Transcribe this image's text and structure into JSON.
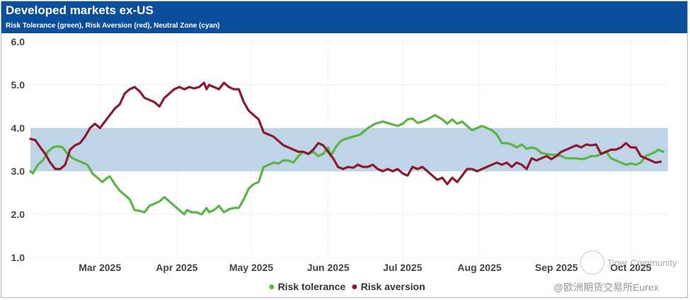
{
  "chart_data": {
    "type": "line",
    "title": "Developed markets ex-US",
    "subtitle": "Risk Tolerance (green), Risk Aversion (red), Neutral Zone (cyan)",
    "xlabel": "",
    "ylabel": "",
    "ylim": [
      1.0,
      6.0
    ],
    "yticks": [
      "1.0",
      "2.0",
      "3.0",
      "4.0",
      "5.0",
      "6.0"
    ],
    "neutral_zone": [
      3.0,
      4.0
    ],
    "x_tick_labels": [
      "Mar 2025",
      "Apr 2025",
      "May 2025",
      "Jun 2025",
      "Jul 2025",
      "Aug 2025",
      "Sep 2025",
      "Oct 2025"
    ],
    "x_tick_days": [
      28,
      59,
      89,
      120,
      150,
      181,
      212,
      242
    ],
    "x_range_days": [
      0,
      257
    ],
    "grid": true,
    "legend_position": "bottom",
    "series": [
      {
        "name": "Risk tolerance",
        "color": "#5cb346",
        "points": [
          [
            0,
            3.0
          ],
          [
            1,
            2.95
          ],
          [
            2,
            3.05
          ],
          [
            3,
            3.15
          ],
          [
            5,
            3.25
          ],
          [
            7,
            3.45
          ],
          [
            9,
            3.55
          ],
          [
            11,
            3.58
          ],
          [
            13,
            3.55
          ],
          [
            15,
            3.4
          ],
          [
            17,
            3.3
          ],
          [
            19,
            3.25
          ],
          [
            21,
            3.2
          ],
          [
            23,
            3.15
          ],
          [
            25,
            2.95
          ],
          [
            27,
            2.85
          ],
          [
            29,
            2.75
          ],
          [
            31,
            2.85
          ],
          [
            32,
            2.88
          ],
          [
            34,
            2.7
          ],
          [
            36,
            2.55
          ],
          [
            38,
            2.45
          ],
          [
            40,
            2.35
          ],
          [
            42,
            2.1
          ],
          [
            44,
            2.08
          ],
          [
            46,
            2.05
          ],
          [
            48,
            2.2
          ],
          [
            50,
            2.25
          ],
          [
            52,
            2.3
          ],
          [
            54,
            2.4
          ],
          [
            56,
            2.3
          ],
          [
            58,
            2.2
          ],
          [
            60,
            2.1
          ],
          [
            62,
            2.0
          ],
          [
            63,
            2.1
          ],
          [
            65,
            2.05
          ],
          [
            67,
            2.05
          ],
          [
            69,
            2.0
          ],
          [
            71,
            2.15
          ],
          [
            72,
            2.05
          ],
          [
            74,
            2.1
          ],
          [
            76,
            2.2
          ],
          [
            78,
            2.05
          ],
          [
            80,
            2.12
          ],
          [
            82,
            2.15
          ],
          [
            84,
            2.15
          ],
          [
            86,
            2.35
          ],
          [
            88,
            2.6
          ],
          [
            90,
            2.7
          ],
          [
            92,
            2.75
          ],
          [
            94,
            3.1
          ],
          [
            96,
            3.15
          ],
          [
            98,
            3.2
          ],
          [
            100,
            3.18
          ],
          [
            102,
            3.25
          ],
          [
            104,
            3.25
          ],
          [
            106,
            3.2
          ],
          [
            108,
            3.35
          ],
          [
            110,
            3.45
          ],
          [
            112,
            3.4
          ],
          [
            114,
            3.45
          ],
          [
            116,
            3.35
          ],
          [
            118,
            3.4
          ],
          [
            120,
            3.55
          ],
          [
            121,
            3.35
          ],
          [
            123,
            3.55
          ],
          [
            125,
            3.7
          ],
          [
            127,
            3.75
          ],
          [
            130,
            3.8
          ],
          [
            133,
            3.85
          ],
          [
            136,
            4.0
          ],
          [
            139,
            4.1
          ],
          [
            142,
            4.15
          ],
          [
            145,
            4.1
          ],
          [
            148,
            4.05
          ],
          [
            150,
            4.1
          ],
          [
            152,
            4.2
          ],
          [
            154,
            4.22
          ],
          [
            156,
            4.12
          ],
          [
            158,
            4.15
          ],
          [
            160,
            4.2
          ],
          [
            163,
            4.3
          ],
          [
            166,
            4.2
          ],
          [
            168,
            4.1
          ],
          [
            170,
            4.2
          ],
          [
            172,
            4.1
          ],
          [
            174,
            4.15
          ],
          [
            176,
            4.05
          ],
          [
            178,
            3.95
          ],
          [
            180,
            4.0
          ],
          [
            182,
            4.05
          ],
          [
            184,
            4.0
          ],
          [
            186,
            3.95
          ],
          [
            188,
            3.85
          ],
          [
            190,
            3.65
          ],
          [
            192,
            3.65
          ],
          [
            194,
            3.62
          ],
          [
            196,
            3.55
          ],
          [
            198,
            3.62
          ],
          [
            200,
            3.52
          ],
          [
            202,
            3.55
          ],
          [
            204,
            3.52
          ],
          [
            206,
            3.42
          ],
          [
            208,
            3.4
          ],
          [
            210,
            3.38
          ],
          [
            212,
            3.38
          ],
          [
            214,
            3.35
          ],
          [
            216,
            3.3
          ],
          [
            218,
            3.3
          ],
          [
            220,
            3.3
          ],
          [
            222,
            3.28
          ],
          [
            224,
            3.3
          ],
          [
            226,
            3.35
          ],
          [
            228,
            3.35
          ],
          [
            230,
            3.4
          ],
          [
            232,
            3.45
          ],
          [
            234,
            3.3
          ],
          [
            236,
            3.25
          ],
          [
            238,
            3.2
          ],
          [
            240,
            3.15
          ],
          [
            242,
            3.18
          ],
          [
            244,
            3.15
          ],
          [
            246,
            3.2
          ],
          [
            248,
            3.35
          ],
          [
            250,
            3.4
          ],
          [
            252,
            3.45
          ],
          [
            253,
            3.5
          ],
          [
            255,
            3.45
          ]
        ]
      },
      {
        "name": "Risk aversion",
        "color": "#8b1a2e",
        "points": [
          [
            0,
            3.75
          ],
          [
            2,
            3.72
          ],
          [
            4,
            3.55
          ],
          [
            6,
            3.4
          ],
          [
            8,
            3.2
          ],
          [
            10,
            3.05
          ],
          [
            12,
            3.05
          ],
          [
            14,
            3.15
          ],
          [
            16,
            3.5
          ],
          [
            18,
            3.6
          ],
          [
            20,
            3.65
          ],
          [
            22,
            3.8
          ],
          [
            24,
            4.0
          ],
          [
            26,
            4.1
          ],
          [
            28,
            4.0
          ],
          [
            30,
            4.15
          ],
          [
            32,
            4.3
          ],
          [
            34,
            4.45
          ],
          [
            36,
            4.55
          ],
          [
            38,
            4.8
          ],
          [
            40,
            4.9
          ],
          [
            42,
            4.95
          ],
          [
            44,
            4.85
          ],
          [
            46,
            4.7
          ],
          [
            48,
            4.65
          ],
          [
            50,
            4.6
          ],
          [
            52,
            4.5
          ],
          [
            54,
            4.7
          ],
          [
            56,
            4.8
          ],
          [
            58,
            4.9
          ],
          [
            60,
            4.95
          ],
          [
            62,
            4.9
          ],
          [
            64,
            4.95
          ],
          [
            66,
            4.92
          ],
          [
            68,
            4.95
          ],
          [
            70,
            5.05
          ],
          [
            71,
            4.9
          ],
          [
            72,
            5.0
          ],
          [
            74,
            4.95
          ],
          [
            76,
            4.9
          ],
          [
            78,
            5.05
          ],
          [
            80,
            4.95
          ],
          [
            82,
            4.9
          ],
          [
            84,
            4.9
          ],
          [
            86,
            4.6
          ],
          [
            88,
            4.4
          ],
          [
            90,
            4.3
          ],
          [
            92,
            4.2
          ],
          [
            94,
            3.9
          ],
          [
            96,
            3.85
          ],
          [
            98,
            3.8
          ],
          [
            100,
            3.7
          ],
          [
            102,
            3.6
          ],
          [
            104,
            3.55
          ],
          [
            106,
            3.5
          ],
          [
            108,
            3.45
          ],
          [
            110,
            3.45
          ],
          [
            112,
            3.4
          ],
          [
            114,
            3.5
          ],
          [
            116,
            3.65
          ],
          [
            118,
            3.6
          ],
          [
            120,
            3.45
          ],
          [
            122,
            3.3
          ],
          [
            124,
            3.1
          ],
          [
            126,
            3.05
          ],
          [
            128,
            3.1
          ],
          [
            130,
            3.08
          ],
          [
            132,
            3.15
          ],
          [
            134,
            3.1
          ],
          [
            136,
            3.1
          ],
          [
            138,
            3.15
          ],
          [
            140,
            3.05
          ],
          [
            142,
            3.0
          ],
          [
            144,
            3.05
          ],
          [
            146,
            3.0
          ],
          [
            148,
            3.05
          ],
          [
            150,
            2.95
          ],
          [
            152,
            2.9
          ],
          [
            154,
            3.1
          ],
          [
            156,
            3.05
          ],
          [
            158,
            3.1
          ],
          [
            160,
            3.0
          ],
          [
            162,
            2.9
          ],
          [
            164,
            2.8
          ],
          [
            166,
            2.85
          ],
          [
            168,
            2.7
          ],
          [
            170,
            2.85
          ],
          [
            172,
            2.75
          ],
          [
            174,
            2.9
          ],
          [
            176,
            3.05
          ],
          [
            178,
            3.05
          ],
          [
            180,
            3.0
          ],
          [
            182,
            3.05
          ],
          [
            184,
            3.1
          ],
          [
            186,
            3.15
          ],
          [
            188,
            3.2
          ],
          [
            190,
            3.15
          ],
          [
            192,
            3.2
          ],
          [
            194,
            3.1
          ],
          [
            196,
            3.2
          ],
          [
            198,
            3.15
          ],
          [
            200,
            3.05
          ],
          [
            202,
            3.3
          ],
          [
            204,
            3.25
          ],
          [
            206,
            3.3
          ],
          [
            208,
            3.35
          ],
          [
            210,
            3.28
          ],
          [
            212,
            3.35
          ],
          [
            214,
            3.45
          ],
          [
            216,
            3.5
          ],
          [
            218,
            3.55
          ],
          [
            220,
            3.6
          ],
          [
            222,
            3.55
          ],
          [
            224,
            3.62
          ],
          [
            226,
            3.6
          ],
          [
            228,
            3.62
          ],
          [
            230,
            3.4
          ],
          [
            232,
            3.45
          ],
          [
            234,
            3.5
          ],
          [
            236,
            3.5
          ],
          [
            238,
            3.55
          ],
          [
            240,
            3.65
          ],
          [
            242,
            3.55
          ],
          [
            244,
            3.55
          ],
          [
            246,
            3.35
          ],
          [
            248,
            3.3
          ],
          [
            250,
            3.25
          ],
          [
            252,
            3.2
          ],
          [
            254,
            3.22
          ]
        ]
      }
    ]
  },
  "watermark": {
    "logo_text": "Tiger Community",
    "source_text": "@欧洲期货交易所Eurex"
  }
}
